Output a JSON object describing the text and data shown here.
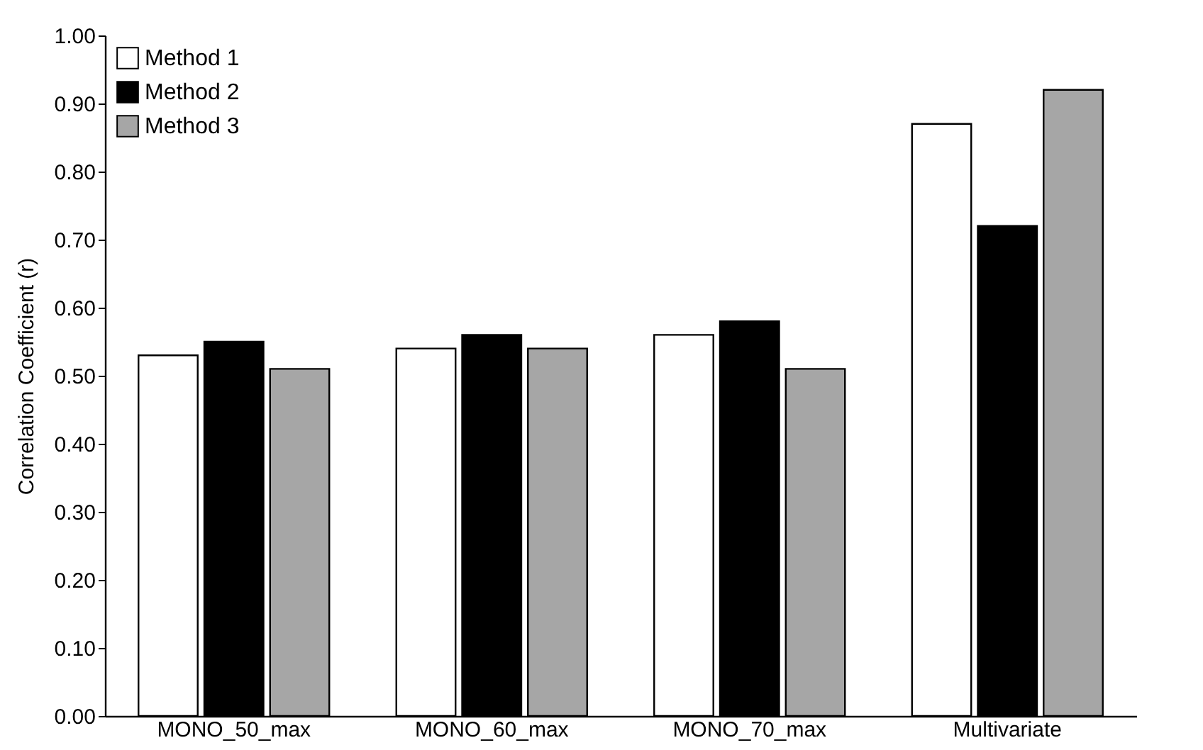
{
  "chart_data": {
    "type": "bar",
    "ylabel": "Correlation Coefficient (r)",
    "categories": [
      "MONO_50_max",
      "MONO_60_max",
      "MONO_70_max",
      "Multivariate"
    ],
    "series": [
      {
        "name": "Method 1",
        "color": "#ffffff",
        "values": [
          0.53,
          0.54,
          0.56,
          0.87
        ]
      },
      {
        "name": "Method 2",
        "color": "#000000",
        "values": [
          0.55,
          0.56,
          0.58,
          0.72
        ]
      },
      {
        "name": "Method 3",
        "color": "#a6a6a6",
        "values": [
          0.51,
          0.54,
          0.51,
          0.92
        ]
      }
    ],
    "ylim": [
      0,
      1
    ],
    "yticks": [
      {
        "value": 0,
        "label": "0.00"
      },
      {
        "value": 0.1,
        "label": "0.10"
      },
      {
        "value": 0.2,
        "label": "0.20"
      },
      {
        "value": 0.3,
        "label": "0.30"
      },
      {
        "value": 0.4,
        "label": "0.40"
      },
      {
        "value": 0.5,
        "label": "0.50"
      },
      {
        "value": 0.6,
        "label": "0.60"
      },
      {
        "value": 0.7,
        "label": "0.70"
      },
      {
        "value": 0.8,
        "label": "0.80"
      },
      {
        "value": 0.9,
        "label": "0.90"
      },
      {
        "value": 1,
        "label": "1.00"
      }
    ],
    "grid": false,
    "legend": "top left"
  }
}
